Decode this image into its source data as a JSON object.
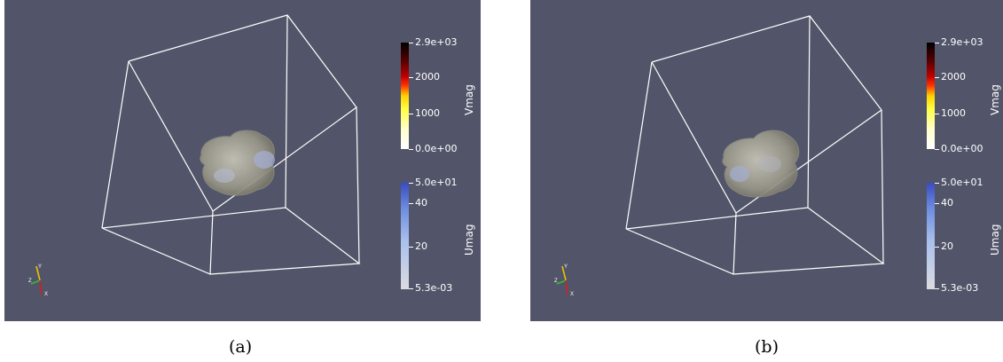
{
  "panels": [
    {
      "caption": "(a)",
      "colorbars": [
        {
          "title": "Vmag",
          "ticks": [
            "2.9e+03",
            "2000",
            "1000",
            "0.0e+00"
          ],
          "colors": [
            "#000000",
            "#5a0000",
            "#c00000",
            "#ff3000",
            "#ffd000",
            "#ffff40",
            "#ffffd0",
            "#ffffff"
          ]
        },
        {
          "title": "Umag",
          "ticks": [
            "5.0e+01",
            "40",
            "20",
            "5.3e-03"
          ],
          "colors": [
            "#3a4cc0",
            "#6f8ee0",
            "#a9c0ec",
            "#dcdce0"
          ]
        }
      ],
      "axes": {
        "x": "X",
        "y": "Y",
        "z": "Z"
      }
    },
    {
      "caption": "(b)",
      "colorbars": [
        {
          "title": "Vmag",
          "ticks": [
            "2.9e+03",
            "2000",
            "1000",
            "0.0e+00"
          ],
          "colors": [
            "#000000",
            "#5a0000",
            "#c00000",
            "#ff3000",
            "#ffd000",
            "#ffff40",
            "#ffffd0",
            "#ffffff"
          ]
        },
        {
          "title": "Umag",
          "ticks": [
            "5.0e+01",
            "40",
            "20",
            "5.3e-03"
          ],
          "colors": [
            "#3a4cc0",
            "#6f8ee0",
            "#a9c0ec",
            "#dcdce0"
          ]
        }
      ],
      "axes": {
        "x": "X",
        "y": "Y",
        "z": "Z"
      }
    }
  ]
}
